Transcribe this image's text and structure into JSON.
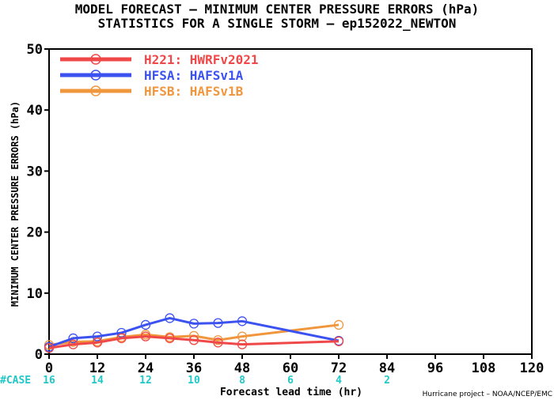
{
  "chart_data": {
    "type": "line",
    "title": "MODEL FORECAST – MINIMUM CENTER PRESSURE ERRORS (hPa)",
    "subtitle": "STATISTICS FOR A SINGLE STORM – ep152022_NEWTON",
    "xlabel": "Forecast lead time (hr)",
    "ylabel": "MINIMUM CENTER PRESSURE ERRORS (hPa)",
    "xlim": [
      0,
      120
    ],
    "ylim": [
      0,
      50
    ],
    "xticks": [
      0,
      12,
      24,
      36,
      48,
      60,
      72,
      84,
      96,
      108,
      120
    ],
    "yticks": [
      0,
      10,
      20,
      30,
      40,
      50
    ],
    "grid": false,
    "legend_position": "top-left",
    "case_label": "#CASE",
    "case_counts": [
      {
        "x": 0,
        "label": "16"
      },
      {
        "x": 12,
        "label": "14"
      },
      {
        "x": 24,
        "label": "12"
      },
      {
        "x": 36,
        "label": "10"
      },
      {
        "x": 48,
        "label": "8"
      },
      {
        "x": 60,
        "label": "6"
      },
      {
        "x": 72,
        "label": "4"
      },
      {
        "x": 84,
        "label": "2"
      }
    ],
    "credit": "Hurricane project – NOAA/NCEP/EMC",
    "series": [
      {
        "name": "H221: HWRFv2021",
        "color": "#f04848",
        "x": [
          0,
          6,
          12,
          18,
          24,
          30,
          36,
          42,
          48,
          72
        ],
        "y": [
          1.0,
          1.6,
          1.9,
          2.6,
          2.9,
          2.6,
          2.3,
          1.9,
          1.6,
          2.1
        ]
      },
      {
        "name": "HFSA: HAFSv1A",
        "color": "#3c52f0",
        "x": [
          0,
          6,
          12,
          18,
          24,
          30,
          36,
          42,
          48,
          72
        ],
        "y": [
          1.2,
          2.6,
          2.9,
          3.5,
          4.8,
          5.9,
          5.0,
          5.1,
          5.4,
          2.2
        ]
      },
      {
        "name": "HFSB: HAFSv1B",
        "color": "#f0963c",
        "x": [
          0,
          6,
          12,
          18,
          24,
          30,
          36,
          42,
          48,
          72
        ],
        "y": [
          1.5,
          2.0,
          2.1,
          2.8,
          3.2,
          2.8,
          3.0,
          2.3,
          2.9,
          4.8
        ]
      }
    ]
  }
}
